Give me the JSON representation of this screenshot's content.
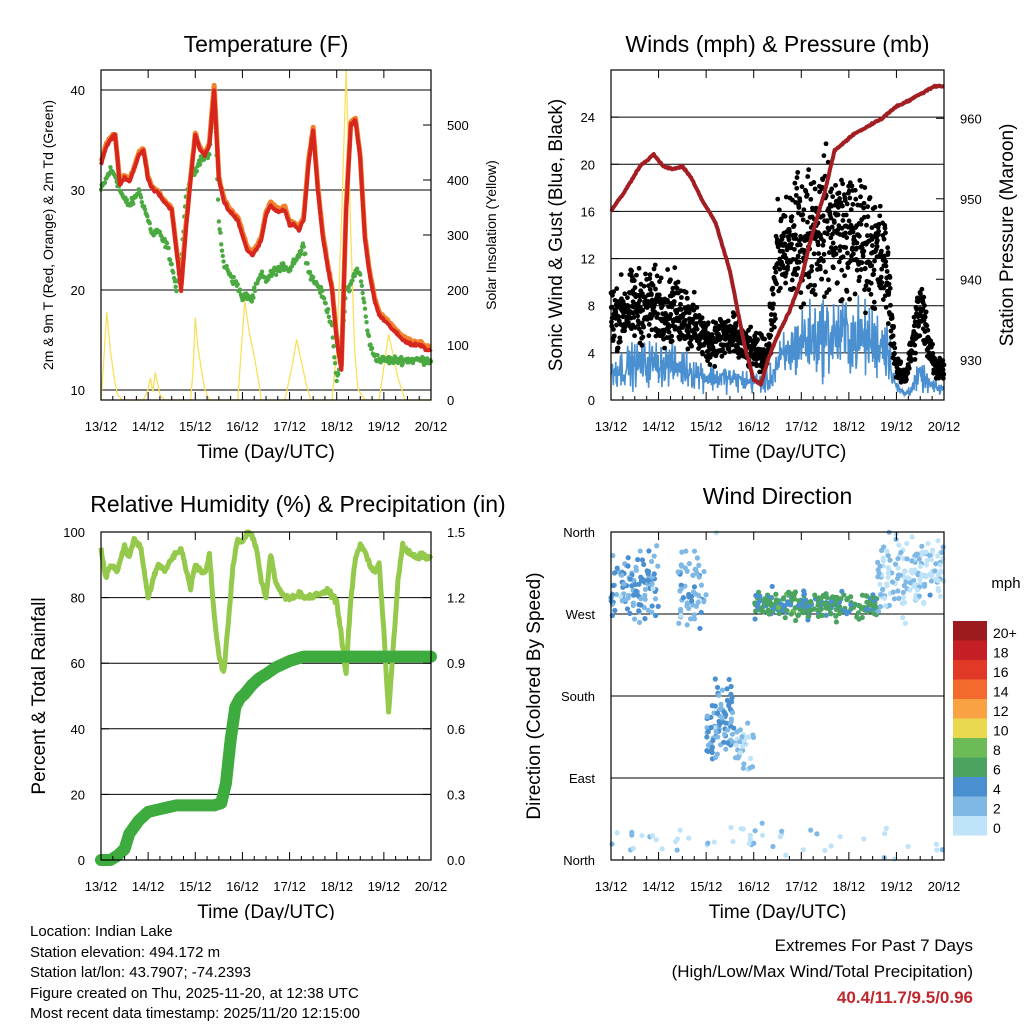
{
  "colors": {
    "temp_red": "#d7261e",
    "temp_orange": "#f2812c",
    "dewpoint_green": "#4aa940",
    "solar_yellow": "#f9e05a",
    "wind_blue": "#4a8fcf",
    "gust_black": "#000000",
    "pressure_maroon": "#a31e22",
    "rh_light_green": "#95c94c",
    "precip_green": "#3dab3d",
    "extremes_red": "#c0272d"
  },
  "x_axis": {
    "label": "Time (Day/UTC)",
    "ticks": [
      "13/12",
      "14/12",
      "15/12",
      "16/12",
      "17/12",
      "18/12",
      "19/12",
      "20/12"
    ]
  },
  "chart_data": [
    {
      "id": "temperature",
      "type": "line",
      "title": "Temperature (F)",
      "ylabel": "2m & 9m T (Red, Orange) & 2m Td (Green)",
      "ylim": [
        9,
        42
      ],
      "yticks": [
        10,
        20,
        30,
        40
      ],
      "y2label": "Solar Insolation (Yellow)",
      "y2lim": [
        0,
        600
      ],
      "y2ticks": [
        0,
        100,
        200,
        300,
        400,
        500
      ],
      "x": [
        0,
        0.1,
        0.2,
        0.3,
        0.4,
        0.5,
        0.6,
        0.7,
        0.8,
        0.9,
        1.0,
        1.1,
        1.2,
        1.3,
        1.4,
        1.5,
        1.6,
        1.7,
        1.8,
        1.9,
        2.0,
        2.1,
        2.2,
        2.3,
        2.4,
        2.5,
        2.6,
        2.7,
        2.8,
        2.9,
        3.0,
        3.1,
        3.2,
        3.3,
        3.4,
        3.5,
        3.6,
        3.7,
        3.8,
        3.9,
        4.0,
        4.1,
        4.2,
        4.3,
        4.4,
        4.5,
        4.6,
        4.7,
        4.8,
        4.9,
        5.0,
        5.1,
        5.2,
        5.3,
        5.4,
        5.5,
        5.6,
        5.7,
        5.8,
        5.9,
        6.0,
        6.1,
        6.2,
        6.3,
        6.4,
        6.5,
        6.6,
        6.7,
        6.8,
        6.9,
        7.0
      ],
      "series": [
        {
          "name": "2m T",
          "color": "#d7261e",
          "values": [
            32.5,
            34.2,
            35.0,
            35.5,
            30.5,
            31.2,
            30.8,
            32.0,
            33.5,
            34.0,
            31.0,
            30.0,
            29.8,
            29.0,
            28.5,
            28.0,
            24.0,
            20.0,
            26.0,
            31.0,
            35.5,
            34.0,
            33.5,
            34.5,
            40.0,
            31.0,
            29.0,
            28.0,
            27.5,
            27.0,
            25.5,
            24.0,
            23.5,
            24.0,
            25.0,
            27.5,
            28.5,
            28.0,
            27.8,
            28.0,
            26.5,
            26.5,
            26.0,
            27.0,
            32.5,
            36.0,
            30.0,
            25.5,
            22.5,
            20.0,
            15.0,
            12.0,
            28.0,
            36.5,
            37.0,
            33.0,
            25.0,
            21.5,
            19.0,
            17.5,
            17.0,
            16.5,
            16.0,
            15.5,
            15.0,
            14.8,
            14.5,
            14.5,
            14.5,
            14.0,
            14.0
          ]
        },
        {
          "name": "9m T",
          "color": "#f2812c",
          "values": [
            32.8,
            34.5,
            35.2,
            35.6,
            30.8,
            31.5,
            31.0,
            32.2,
            33.7,
            34.2,
            31.2,
            30.2,
            30.0,
            29.2,
            28.7,
            28.2,
            24.2,
            20.5,
            26.3,
            31.2,
            35.7,
            34.2,
            33.7,
            34.7,
            40.5,
            31.3,
            29.3,
            28.3,
            27.8,
            27.3,
            25.8,
            24.3,
            23.8,
            24.3,
            25.3,
            27.8,
            28.8,
            28.3,
            28.1,
            28.3,
            26.8,
            26.8,
            26.3,
            27.3,
            32.8,
            36.3,
            30.3,
            25.8,
            22.8,
            20.3,
            15.3,
            12.3,
            28.3,
            36.8,
            37.2,
            33.3,
            25.3,
            21.8,
            19.3,
            17.8,
            17.3,
            16.8,
            16.3,
            15.8,
            15.3,
            15.1,
            14.8,
            14.8,
            14.8,
            14.3,
            14.3
          ]
        },
        {
          "name": "2m Td",
          "color": "#4aa940",
          "values": [
            30.0,
            31.0,
            32.0,
            31.5,
            30.0,
            29.0,
            28.5,
            29.0,
            30.0,
            28.5,
            27.0,
            25.5,
            26.0,
            25.0,
            24.5,
            22.5,
            20.0,
            23.0,
            29.0,
            31.5,
            32.0,
            33.0,
            33.5,
            33.5,
            40.0,
            27.0,
            22.5,
            22.0,
            21.0,
            20.5,
            19.0,
            19.5,
            19.0,
            20.5,
            21.5,
            21.0,
            21.5,
            22.0,
            22.0,
            22.5,
            22.0,
            23.0,
            23.5,
            24.5,
            22.0,
            21.0,
            20.5,
            19.5,
            18.0,
            16.5,
            10.5,
            14.0,
            20.0,
            20.5,
            22.0,
            21.5,
            18.0,
            14.5,
            13.5,
            13.0,
            13.0,
            13.0,
            13.0,
            13.0,
            13.0,
            13.0,
            13.0,
            13.0,
            13.0,
            13.0,
            13.0
          ]
        }
      ],
      "solar": {
        "name": "Solar Insolation",
        "color": "#f9e05a",
        "x": [
          0,
          0.05,
          0.12,
          0.2,
          0.28,
          0.35,
          0.45,
          0.9,
          1.0,
          1.05,
          1.1,
          1.15,
          1.2,
          1.25,
          1.35,
          1.9,
          1.95,
          2.0,
          2.05,
          2.12,
          2.2,
          2.3,
          2.4,
          2.9,
          2.95,
          3.05,
          3.15,
          3.25,
          3.35,
          3.4,
          3.9,
          3.95,
          4.05,
          4.15,
          4.25,
          4.35,
          4.45,
          4.9,
          5.0,
          5.1,
          5.2,
          5.3,
          5.38,
          5.45,
          5.6,
          5.9,
          6.0,
          6.1,
          6.2,
          6.3,
          6.45,
          7.0
        ],
        "values": [
          0,
          60,
          160,
          90,
          40,
          10,
          0,
          0,
          20,
          40,
          15,
          50,
          30,
          10,
          0,
          0,
          50,
          150,
          100,
          60,
          20,
          0,
          0,
          0,
          60,
          180,
          120,
          80,
          30,
          0,
          0,
          20,
          60,
          110,
          70,
          30,
          0,
          0,
          90,
          320,
          600,
          300,
          90,
          20,
          0,
          0,
          60,
          120,
          80,
          40,
          0,
          0
        ]
      }
    },
    {
      "id": "winds",
      "type": "line",
      "title": "Winds (mph) & Pressure (mb)",
      "ylabel": "Sonic Wind & Gust (Blue, Black)",
      "ylim": [
        0,
        28
      ],
      "yticks": [
        0,
        4,
        8,
        12,
        16,
        20,
        24
      ],
      "y2label": "Station Pressure (Maroon)",
      "y2lim": [
        925,
        966
      ],
      "y2ticks": [
        930,
        940,
        950,
        960
      ],
      "series": [
        {
          "name": "Sonic Wind",
          "color": "#4a8fcf",
          "x": [
            0,
            0.5,
            1,
            1.5,
            2,
            2.5,
            3,
            3.3,
            3.5,
            4,
            4.5,
            5,
            5.5,
            5.8,
            6,
            6.2,
            6.5,
            6.8,
            7
          ],
          "values": [
            2.5,
            3.0,
            3.2,
            2.8,
            2.0,
            1.8,
            1.5,
            1.5,
            3.0,
            5.0,
            5.5,
            5.5,
            5.0,
            4.8,
            1.0,
            0.5,
            2.0,
            1.0,
            1.0
          ]
        },
        {
          "name": "Gust",
          "color": "#000000",
          "x": [
            0,
            0.5,
            1,
            1.5,
            2,
            2.5,
            3,
            3.3,
            3.5,
            4,
            4.5,
            5,
            5.5,
            5.8,
            6,
            6.2,
            6.5,
            6.8,
            7
          ],
          "values": [
            7.0,
            8.0,
            8.0,
            7.5,
            5.0,
            5.5,
            4.0,
            4.0,
            12.0,
            14.0,
            15.0,
            14.0,
            13.0,
            11.0,
            2.5,
            2.0,
            8.0,
            3.0,
            2.5
          ]
        },
        {
          "name": "Station Pressure",
          "color": "#a31e22",
          "x": [
            0,
            0.3,
            0.6,
            0.9,
            1.1,
            1.3,
            1.5,
            1.7,
            1.9,
            2.2,
            2.5,
            2.8,
            3.0,
            3.15,
            3.3,
            3.5,
            3.75,
            4.0,
            4.2,
            4.5,
            4.7,
            4.9,
            5.1,
            5.4,
            5.7,
            6.0,
            6.2,
            6.5,
            6.8,
            7.0
          ],
          "values": [
            948.5,
            951,
            954,
            955.5,
            954,
            953.7,
            954,
            952.5,
            950,
            947,
            941,
            932,
            927.5,
            927,
            930,
            933,
            936,
            940,
            945,
            951,
            956,
            957,
            958,
            959,
            960,
            961.5,
            962,
            963,
            964,
            964
          ]
        }
      ]
    },
    {
      "id": "humidity",
      "type": "line",
      "title": "Relative Humidity (%) & Precipitation (in)",
      "ylabel": "Percent & Total Rainfall",
      "ylim": [
        0,
        100
      ],
      "yticks": [
        0,
        20,
        40,
        60,
        80,
        100
      ],
      "y2lim": [
        0,
        1.5
      ],
      "y2ticks": [
        "0.0",
        "0.3",
        "0.6",
        "0.9",
        "1.2",
        "1.5"
      ],
      "series": [
        {
          "name": "Relative Humidity",
          "color": "#95c94c",
          "x": [
            0,
            0.1,
            0.2,
            0.35,
            0.5,
            0.6,
            0.7,
            0.85,
            1.0,
            1.2,
            1.35,
            1.5,
            1.7,
            1.9,
            2.0,
            2.2,
            2.3,
            2.4,
            2.5,
            2.6,
            2.7,
            2.8,
            2.9,
            3.0,
            3.1,
            3.2,
            3.3,
            3.4,
            3.5,
            3.6,
            3.7,
            3.8,
            3.9,
            4.0,
            4.2,
            4.4,
            4.6,
            4.8,
            5.0,
            5.1,
            5.2,
            5.3,
            5.4,
            5.5,
            5.6,
            5.7,
            5.8,
            5.9,
            6.0,
            6.1,
            6.2,
            6.3,
            6.4,
            6.5,
            6.6,
            6.7,
            6.8,
            7.0
          ],
          "values": [
            95,
            86,
            90,
            88,
            96,
            92,
            98,
            95,
            80,
            90,
            88,
            92,
            95,
            83,
            90,
            87,
            93,
            75,
            62,
            57,
            72,
            90,
            98,
            97,
            100,
            99,
            95,
            85,
            80,
            93,
            85,
            82,
            80,
            80,
            81,
            80,
            81,
            82,
            79,
            68,
            57,
            80,
            92,
            96,
            94,
            90,
            88,
            90,
            70,
            45,
            65,
            85,
            96,
            94,
            93,
            92,
            93,
            92
          ]
        },
        {
          "name": "Total Precipitation",
          "color": "#3dab3d",
          "x": [
            0,
            0.2,
            0.35,
            0.5,
            0.6,
            0.8,
            1.0,
            1.2,
            1.4,
            1.6,
            1.8,
            2.0,
            2.2,
            2.4,
            2.55,
            2.65,
            2.75,
            2.85,
            2.95,
            3.05,
            3.2,
            3.35,
            3.5,
            3.7,
            4.0,
            4.3,
            4.6,
            5.0,
            5.5,
            6.0,
            6.5,
            7.0
          ],
          "values": [
            0,
            0,
            0.02,
            0.05,
            0.12,
            0.18,
            0.22,
            0.23,
            0.24,
            0.25,
            0.25,
            0.25,
            0.25,
            0.25,
            0.26,
            0.35,
            0.55,
            0.7,
            0.74,
            0.76,
            0.8,
            0.83,
            0.85,
            0.88,
            0.91,
            0.93,
            0.93,
            0.93,
            0.93,
            0.93,
            0.93,
            0.93
          ]
        }
      ]
    },
    {
      "id": "wind_direction",
      "type": "scatter",
      "title": "Wind Direction",
      "ylabel": "Direction (Colored By Speed)",
      "ylim": [
        0,
        360
      ],
      "ytick_values": [
        0,
        90,
        180,
        270,
        360
      ],
      "ytick_labels": [
        "North",
        "East",
        "South",
        "West",
        "North"
      ],
      "clusters": [
        {
          "x0": 0.0,
          "x1": 1.0,
          "dir_mean": 300,
          "dir_spread": 40,
          "speed_mean": 3.0,
          "n": 110
        },
        {
          "x0": 1.4,
          "x1": 2.0,
          "dir_mean": 295,
          "dir_spread": 45,
          "speed_mean": 2.5,
          "n": 60
        },
        {
          "x0": 2.0,
          "x1": 2.6,
          "dir_mean": 150,
          "dir_spread": 40,
          "speed_mean": 3.0,
          "n": 90
        },
        {
          "x0": 2.6,
          "x1": 3.0,
          "dir_mean": 120,
          "dir_spread": 40,
          "speed_mean": 1.5,
          "n": 30
        },
        {
          "x0": 3.0,
          "x1": 5.6,
          "dir_mean": 280,
          "dir_spread": 15,
          "speed_mean": 5.5,
          "n": 260
        },
        {
          "x0": 5.6,
          "x1": 6.2,
          "dir_mean": 310,
          "dir_spread": 50,
          "speed_mean": 1.0,
          "n": 70
        },
        {
          "x0": 6.2,
          "x1": 7.0,
          "dir_mean": 320,
          "dir_spread": 40,
          "speed_mean": 1.0,
          "n": 90
        },
        {
          "x0": 0.0,
          "x1": 7.0,
          "dir_mean": 20,
          "dir_spread": 20,
          "speed_mean": 0.5,
          "n": 50
        }
      ],
      "legend": {
        "title": "mph",
        "labels": [
          "20+",
          "18",
          "16",
          "14",
          "12",
          "10",
          "8",
          "6",
          "4",
          "2",
          "0"
        ],
        "colors": [
          "#9b1b1e",
          "#c41f24",
          "#e03a27",
          "#f26a2d",
          "#f9a243",
          "#e8d94f",
          "#6cbb57",
          "#4aa460",
          "#4a8fcf",
          "#7fb8e5",
          "#bfe3f8"
        ]
      }
    }
  ],
  "station": {
    "location": "Location: Indian Lake",
    "elevation": "Station elevation: 494.172 m",
    "latlon": "Station lat/lon: 43.7907; -74.2393",
    "created": "Figure created on Thu, 2025-11-20, at 12:38 UTC",
    "recent": "Most recent data timestamp: 2025/11/20 12:15:00"
  },
  "extremes": {
    "title": "Extremes For Past 7 Days",
    "subtitle": "(High/Low/Max Wind/Total Precipitation)",
    "values": "40.4/11.7/9.5/0.96"
  }
}
